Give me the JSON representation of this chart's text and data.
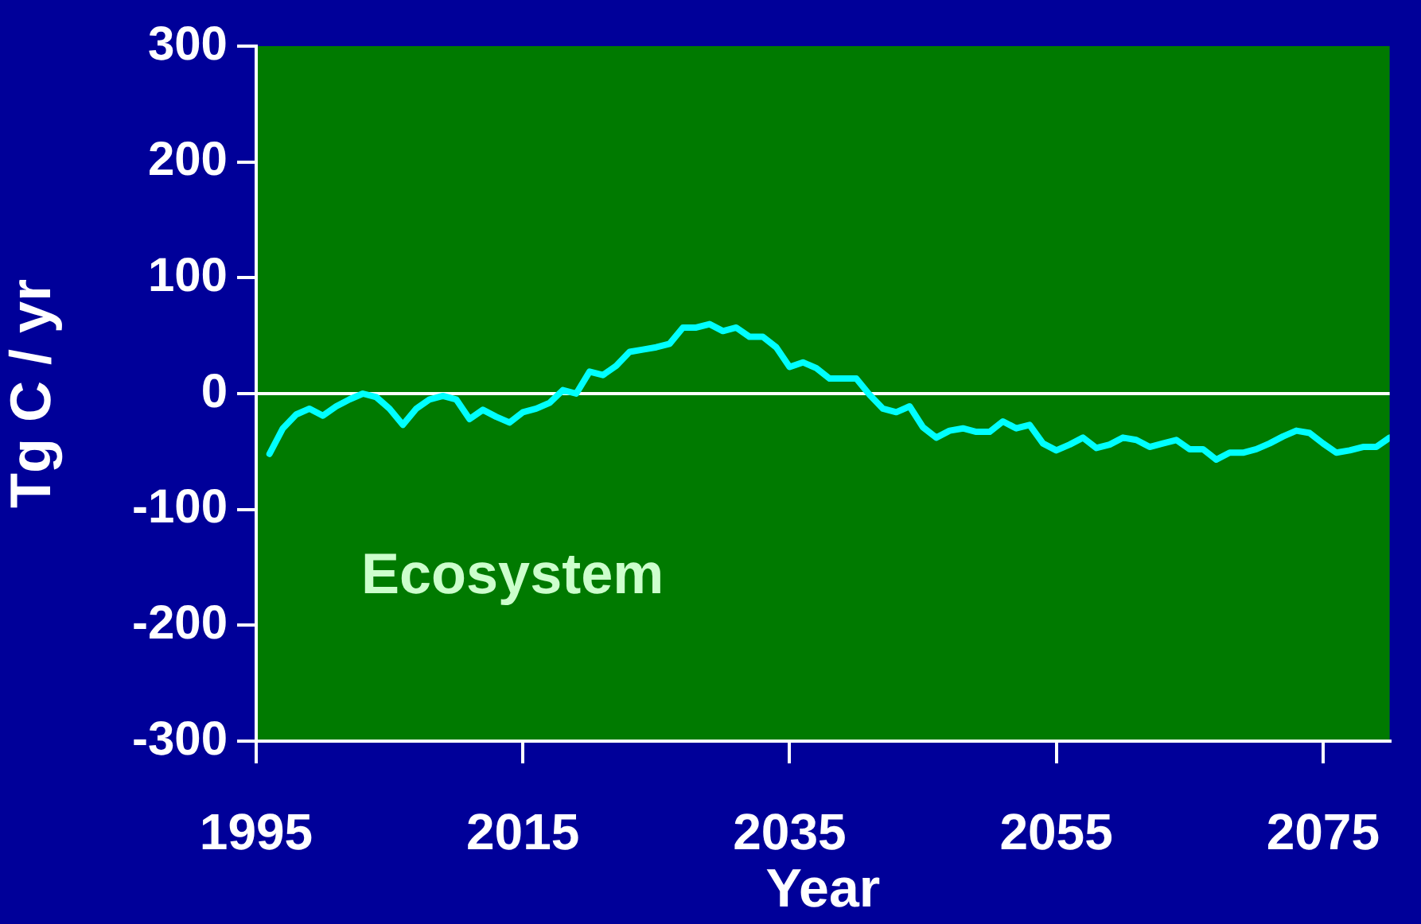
{
  "chart_data": {
    "type": "line",
    "xlabel": "Year",
    "ylabel": "Tg C / yr",
    "annotations": [
      "Ecosystem"
    ],
    "x": [
      1996,
      1997,
      1998,
      1999,
      2000,
      2001,
      2002,
      2003,
      2004,
      2005,
      2006,
      2007,
      2008,
      2009,
      2010,
      2011,
      2012,
      2013,
      2014,
      2015,
      2016,
      2017,
      2018,
      2019,
      2020,
      2021,
      2022,
      2023,
      2024,
      2025,
      2026,
      2027,
      2028,
      2029,
      2030,
      2031,
      2032,
      2033,
      2034,
      2035,
      2036,
      2037,
      2038,
      2039,
      2040,
      2041,
      2042,
      2043,
      2044,
      2045,
      2046,
      2047,
      2048,
      2049,
      2050,
      2051,
      2052,
      2053,
      2054,
      2055,
      2056,
      2057,
      2058,
      2059,
      2060,
      2061,
      2062,
      2063,
      2064,
      2065,
      2066,
      2067,
      2068,
      2069,
      2070,
      2071,
      2072,
      2073,
      2074,
      2075,
      2076,
      2077,
      2078,
      2079,
      2080
    ],
    "series": [
      {
        "color": "#00ffff",
        "values": [
          -52,
          -30,
          -18,
          -13,
          -19,
          -11,
          -5,
          0,
          -3,
          -13,
          -27,
          -13,
          -5,
          -2,
          -5,
          -22,
          -14,
          -20,
          -25,
          -16,
          -13,
          -8,
          3,
          0,
          19,
          16,
          24,
          36,
          38,
          40,
          43,
          57,
          57,
          60,
          54,
          57,
          49,
          49,
          40,
          23,
          27,
          22,
          13,
          13,
          13,
          -1,
          -13,
          -16,
          -11,
          -29,
          -38,
          -32,
          -30,
          -33,
          -33,
          -24,
          -30,
          -27,
          -43,
          -49,
          -44,
          -38,
          -47,
          -44,
          -38,
          -40,
          -46,
          -43,
          -40,
          -48,
          -48,
          -57,
          -51,
          -51,
          -48,
          -43,
          -37,
          -32,
          -34,
          -43,
          -51,
          -49,
          -46,
          -46,
          -38
        ]
      }
    ],
    "xlim": [
      1995,
      2080
    ],
    "xticks": [
      1995,
      2015,
      2035,
      2055,
      2075
    ],
    "ylim": [
      -300,
      300
    ],
    "yticks": [
      -300,
      -200,
      -100,
      0,
      100,
      200,
      300
    ],
    "ref_lines": [
      {
        "axis": "y",
        "value": 0,
        "color": "#ffffff"
      }
    ],
    "grid": false,
    "legend": false,
    "marker": "none",
    "line_style": "solid"
  }
}
